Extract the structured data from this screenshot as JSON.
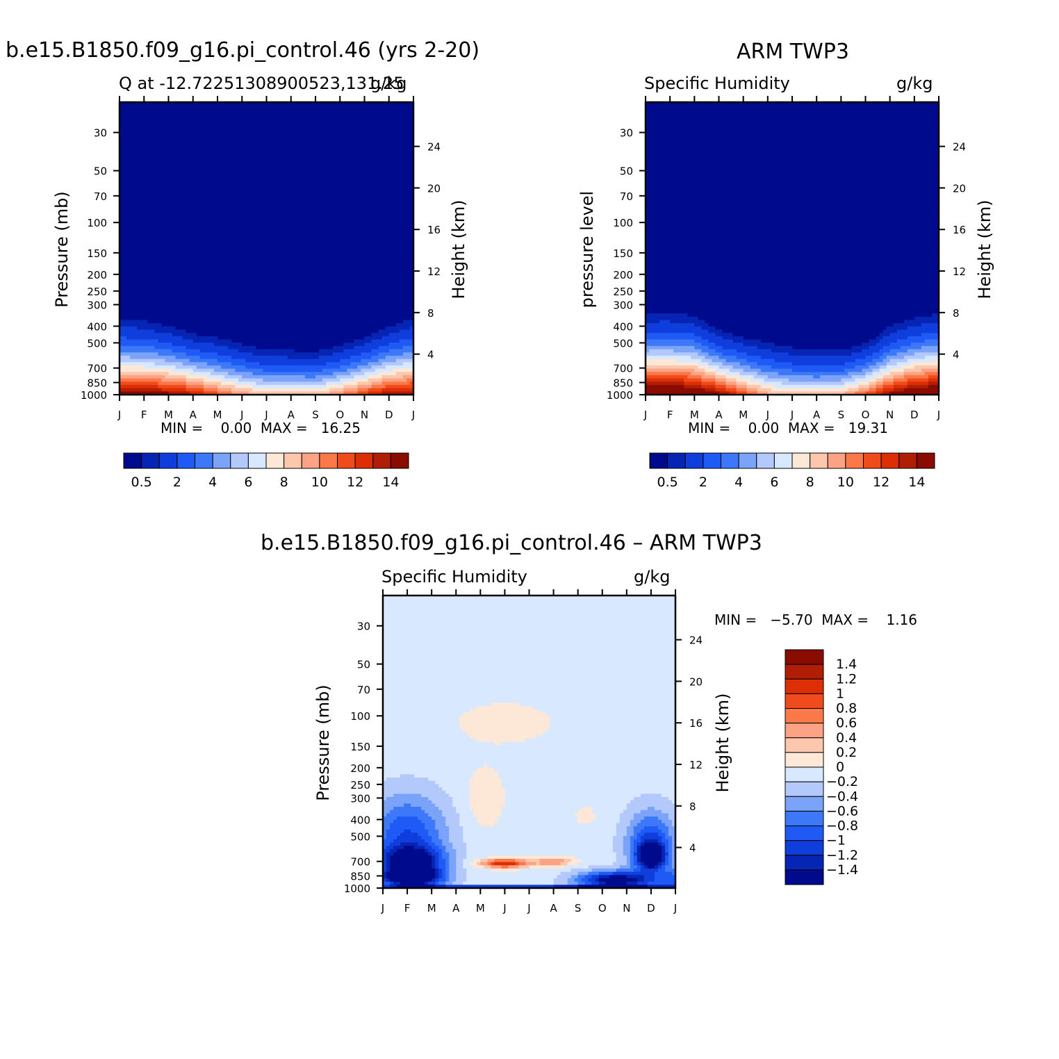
{
  "chart_data": [
    {
      "type": "heatmap",
      "title": "b.e15.B1850.f09_g16.pi_control.46 (yrs 2-20)",
      "subtitle_left": "Q at -12.72251308900523,131.25",
      "subtitle_right": "g/kg",
      "ylabel": "Pressure (mb)",
      "ylabel_right": "Height (km)",
      "x_ticks": [
        "J",
        "F",
        "M",
        "A",
        "M",
        "J",
        "J",
        "A",
        "S",
        "O",
        "N",
        "D",
        "J"
      ],
      "y_ticks": [
        "30",
        "50",
        "70",
        "100",
        "150",
        "200",
        "250",
        "300",
        "400",
        "500",
        "700",
        "850",
        "1000"
      ],
      "y_ticks_values": [
        30,
        50,
        70,
        100,
        150,
        200,
        250,
        300,
        400,
        500,
        700,
        850,
        1000
      ],
      "y_right_ticks": [
        "24",
        "20",
        "16",
        "12",
        "8",
        "4"
      ],
      "y_right_values": [
        24,
        20,
        16,
        12,
        8,
        4
      ],
      "ylim": [
        1000,
        20
      ],
      "scale": "log-pressure",
      "min_max_text": "MIN =    0.00  MAX =   16.25",
      "colorbar": {
        "levels": [
          0.5,
          1,
          2,
          3,
          4,
          5,
          6,
          7,
          8,
          9,
          10,
          11,
          12,
          13,
          14
        ],
        "tick_labels": [
          "0.5",
          "2",
          "4",
          "6",
          "8",
          "10",
          "12",
          "14"
        ],
        "colors": [
          "#000a8c",
          "#0625b4",
          "#0f3edc",
          "#1f5af5",
          "#3c78f8",
          "#7aa3f9",
          "#b3c9fb",
          "#d8e8ff",
          "#fde8d8",
          "#fcc7ad",
          "#fca386",
          "#fb7848",
          "#ef4b1c",
          "#dd2e05",
          "#b01e05",
          "#8a0b00"
        ]
      },
      "surface_q_by_month": [
        14.5,
        14.8,
        14.6,
        13.4,
        11.6,
        9.8,
        8.9,
        8.7,
        8.8,
        10.2,
        12.3,
        14.0,
        14.5
      ],
      "moist_top_pressure_by_month": [
        320,
        330,
        360,
        400,
        420,
        460,
        500,
        505,
        510,
        470,
        420,
        360,
        320
      ]
    },
    {
      "type": "heatmap",
      "title": "ARM TWP3",
      "subtitle_left": "Specific Humidity",
      "subtitle_right": "g/kg",
      "ylabel": "pressure level",
      "ylabel_right": "Height (km)",
      "x_ticks": [
        "J",
        "F",
        "M",
        "A",
        "M",
        "J",
        "J",
        "A",
        "S",
        "O",
        "N",
        "D",
        "J"
      ],
      "y_ticks": [
        "30",
        "50",
        "70",
        "100",
        "150",
        "200",
        "250",
        "300",
        "400",
        "500",
        "700",
        "850",
        "1000"
      ],
      "y_ticks_values": [
        30,
        50,
        70,
        100,
        150,
        200,
        250,
        300,
        400,
        500,
        700,
        850,
        1000
      ],
      "y_right_ticks": [
        "24",
        "20",
        "16",
        "12",
        "8",
        "4"
      ],
      "y_right_values": [
        24,
        20,
        16,
        12,
        8,
        4
      ],
      "ylim": [
        1000,
        20
      ],
      "scale": "log-pressure",
      "min_max_text": "MIN =    0.00  MAX =   19.31",
      "colorbar": {
        "levels": [
          0.5,
          1,
          2,
          3,
          4,
          5,
          6,
          7,
          8,
          9,
          10,
          11,
          12,
          13,
          14
        ],
        "tick_labels": [
          "0.5",
          "2",
          "4",
          "6",
          "8",
          "10",
          "12",
          "14"
        ],
        "colors": [
          "#000a8c",
          "#0625b4",
          "#0f3edc",
          "#1f5af5",
          "#3c78f8",
          "#7aa3f9",
          "#b3c9fb",
          "#d8e8ff",
          "#fde8d8",
          "#fcc7ad",
          "#fca386",
          "#fb7848",
          "#ef4b1c",
          "#dd2e05",
          "#b01e05",
          "#8a0b00"
        ]
      },
      "surface_q_by_month": [
        17.0,
        17.2,
        16.5,
        14.5,
        12.0,
        9.5,
        8.5,
        8.5,
        9.0,
        11.5,
        14.5,
        16.5,
        17.0
      ],
      "moist_top_pressure_by_month": [
        300,
        300,
        310,
        380,
        420,
        450,
        480,
        500,
        500,
        460,
        360,
        320,
        300
      ]
    },
    {
      "type": "heatmap",
      "title": "b.e15.B1850.f09_g16.pi_control.46 – ARM TWP3",
      "subtitle_left": "Specific Humidity",
      "subtitle_right": "g/kg",
      "ylabel": "Pressure (mb)",
      "ylabel_right": "Height (km)",
      "x_ticks": [
        "J",
        "F",
        "M",
        "A",
        "M",
        "J",
        "J",
        "A",
        "S",
        "O",
        "N",
        "D",
        "J"
      ],
      "y_ticks": [
        "30",
        "50",
        "70",
        "100",
        "150",
        "200",
        "250",
        "300",
        "400",
        "500",
        "700",
        "850",
        "1000"
      ],
      "y_ticks_values": [
        30,
        50,
        70,
        100,
        150,
        200,
        250,
        300,
        400,
        500,
        700,
        850,
        1000
      ],
      "y_right_ticks": [
        "24",
        "20",
        "16",
        "12",
        "8",
        "4"
      ],
      "y_right_values": [
        24,
        20,
        16,
        12,
        8,
        4
      ],
      "ylim": [
        1000,
        20
      ],
      "scale": "log-pressure",
      "min_max_text": "MIN =   −5.70  MAX =    1.16",
      "colorbar": {
        "levels": [
          -1.4,
          -1.2,
          -1,
          -0.8,
          -0.6,
          -0.4,
          -0.2,
          0,
          0.2,
          0.4,
          0.6,
          0.8,
          1,
          1.2,
          1.4
        ],
        "tick_labels": [
          "1.4",
          "1.2",
          "1",
          "0.8",
          "0.6",
          "0.4",
          "0.2",
          "0",
          "−0.2",
          "−0.4",
          "−0.6",
          "−0.8",
          "−1",
          "−1.2",
          "−1.4"
        ],
        "colors": [
          "#000a8c",
          "#0625b4",
          "#0f3edc",
          "#1f5af5",
          "#3c78f8",
          "#7aa3f9",
          "#b3c9fb",
          "#d8e8ff",
          "#fde8d8",
          "#fcc7ad",
          "#fca386",
          "#fb7848",
          "#ef4b1c",
          "#dd2e05",
          "#b01e05",
          "#8a0b00"
        ]
      }
    }
  ]
}
